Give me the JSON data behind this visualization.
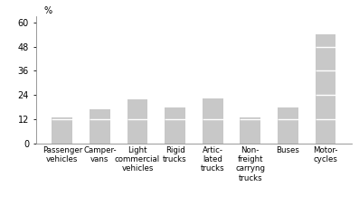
{
  "categories": [
    "Passenger\nvehicles",
    "Camper-\nvans",
    "Light\ncommercial\nvehicles",
    "Rigid\ntrucks",
    "Artic-\nlated\ntrucks",
    "Non-\nfreight\ncarryng\ntrucks",
    "Buses",
    "Motor-\ncycles"
  ],
  "values": [
    13.0,
    17.0,
    22.0,
    18.0,
    22.5,
    13.0,
    18.0,
    54.0
  ],
  "bar_color": "#c8c8c8",
  "divider_color": "#ffffff",
  "divider_interval": 12,
  "ylabel": "%",
  "yticks": [
    0,
    12,
    24,
    36,
    48,
    60
  ],
  "ylim": [
    0,
    63
  ],
  "background_color": "#ffffff",
  "bar_width": 0.55,
  "tick_fontsize": 7,
  "label_fontsize": 6.2,
  "spine_color": "#888888"
}
